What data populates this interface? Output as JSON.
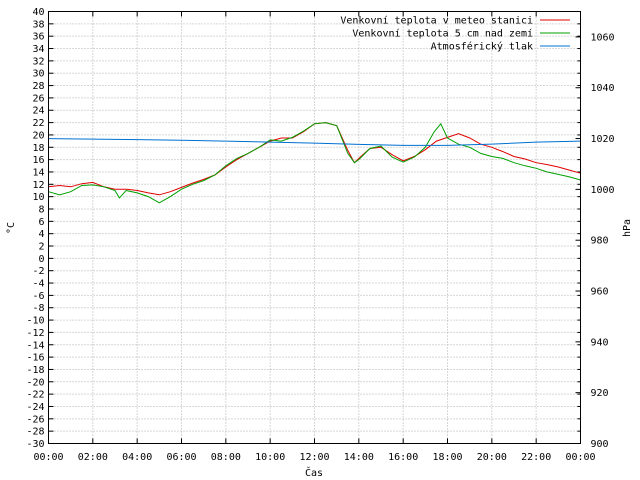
{
  "chart_data": {
    "type": "line",
    "xlabel": "Čas",
    "ylabel": "°C",
    "y2label": "hPa",
    "ylim": [
      -30,
      40
    ],
    "y2lim": [
      900,
      1070
    ],
    "xlim": [
      0,
      24
    ],
    "grid": true,
    "legend_placement": "top-right",
    "x_tick_labels": [
      "00:00",
      "02:00",
      "04:00",
      "06:00",
      "08:00",
      "10:00",
      "12:00",
      "14:00",
      "16:00",
      "18:00",
      "20:00",
      "22:00",
      "00:00"
    ],
    "y_tick_labels": [
      "40",
      "38",
      "36",
      "34",
      "32",
      "30",
      "28",
      "26",
      "24",
      "22",
      "20",
      "18",
      "16",
      "14",
      "12",
      "10",
      "8",
      "6",
      "4",
      "2",
      "0",
      "-2",
      "-4",
      "-6",
      "-8",
      "-10",
      "-12",
      "-14",
      "-16",
      "-18",
      "-20",
      "-22",
      "-24",
      "-26",
      "-28",
      "-30"
    ],
    "y2_tick_labels": [
      "1060",
      "1040",
      "1020",
      "1000",
      "980",
      "960",
      "940",
      "920",
      "900"
    ],
    "series": [
      {
        "name": "Venkovní teplota v meteo stanici",
        "color": "#e00000",
        "axis": "left",
        "x": [
          0,
          0.5,
          1,
          1.5,
          2,
          2.5,
          3,
          3.5,
          4,
          4.5,
          5,
          5.5,
          6,
          6.5,
          7,
          7.5,
          8,
          8.5,
          9,
          9.5,
          10,
          10.5,
          11,
          11.5,
          12,
          12.5,
          13,
          13.5,
          13.8,
          14,
          14.5,
          15,
          15.5,
          16,
          16.5,
          17,
          17.5,
          18,
          18.5,
          19,
          19.5,
          20,
          20.5,
          21,
          21.5,
          22,
          22.5,
          23,
          23.5,
          24
        ],
        "y": [
          11.6,
          11.8,
          11.6,
          12.1,
          12.3,
          11.6,
          11.2,
          11.2,
          11.0,
          10.6,
          10.3,
          10.8,
          11.5,
          12.2,
          12.8,
          13.5,
          14.8,
          16.0,
          17.0,
          18.0,
          19.0,
          19.5,
          19.5,
          20.5,
          21.8,
          22.0,
          21.5,
          17.5,
          15.5,
          16.2,
          17.8,
          18.0,
          16.8,
          15.8,
          16.5,
          17.6,
          19.0,
          19.6,
          20.2,
          19.5,
          18.5,
          18.0,
          17.3,
          16.5,
          16.1,
          15.5,
          15.2,
          14.8,
          14.3,
          13.8
        ]
      },
      {
        "name": "Venkovní teplota 5 cm nad zemí",
        "color": "#00a000",
        "axis": "left",
        "x": [
          0,
          0.5,
          1,
          1.5,
          2,
          2.5,
          3,
          3.2,
          3.5,
          4,
          4.5,
          5,
          5.5,
          6,
          6.5,
          7,
          7.5,
          8,
          8.5,
          9,
          9.5,
          10,
          10.5,
          11,
          11.5,
          12,
          12.5,
          13,
          13.5,
          13.8,
          14,
          14.5,
          15,
          15.5,
          16,
          16.5,
          17,
          17.4,
          17.7,
          18,
          18.5,
          19,
          19.5,
          20,
          20.5,
          21,
          21.5,
          22,
          22.5,
          23,
          23.5,
          24
        ],
        "y": [
          10.8,
          10.3,
          10.8,
          11.8,
          11.9,
          11.6,
          11.0,
          9.8,
          11.0,
          10.6,
          10.0,
          9.0,
          10.0,
          11.2,
          12.0,
          12.6,
          13.5,
          15.0,
          16.2,
          17.0,
          18.0,
          19.2,
          19.0,
          19.6,
          20.6,
          21.8,
          22.0,
          21.5,
          17.0,
          15.5,
          16.0,
          17.8,
          18.2,
          16.4,
          15.6,
          16.4,
          18.0,
          20.5,
          21.8,
          19.5,
          18.5,
          18.0,
          17.0,
          16.5,
          16.2,
          15.5,
          15.0,
          14.6,
          14.0,
          13.6,
          13.2,
          12.7
        ]
      },
      {
        "name": "Atmosférický tlak",
        "color": "#0070d0",
        "axis": "right",
        "x": [
          0,
          2,
          4,
          6,
          8,
          10,
          12,
          14,
          16,
          18,
          20,
          22,
          24
        ],
        "y": [
          1020.0,
          1019.8,
          1019.6,
          1019.3,
          1019.0,
          1018.6,
          1018.2,
          1017.7,
          1017.3,
          1017.3,
          1017.8,
          1018.6,
          1019.0
        ]
      }
    ]
  }
}
